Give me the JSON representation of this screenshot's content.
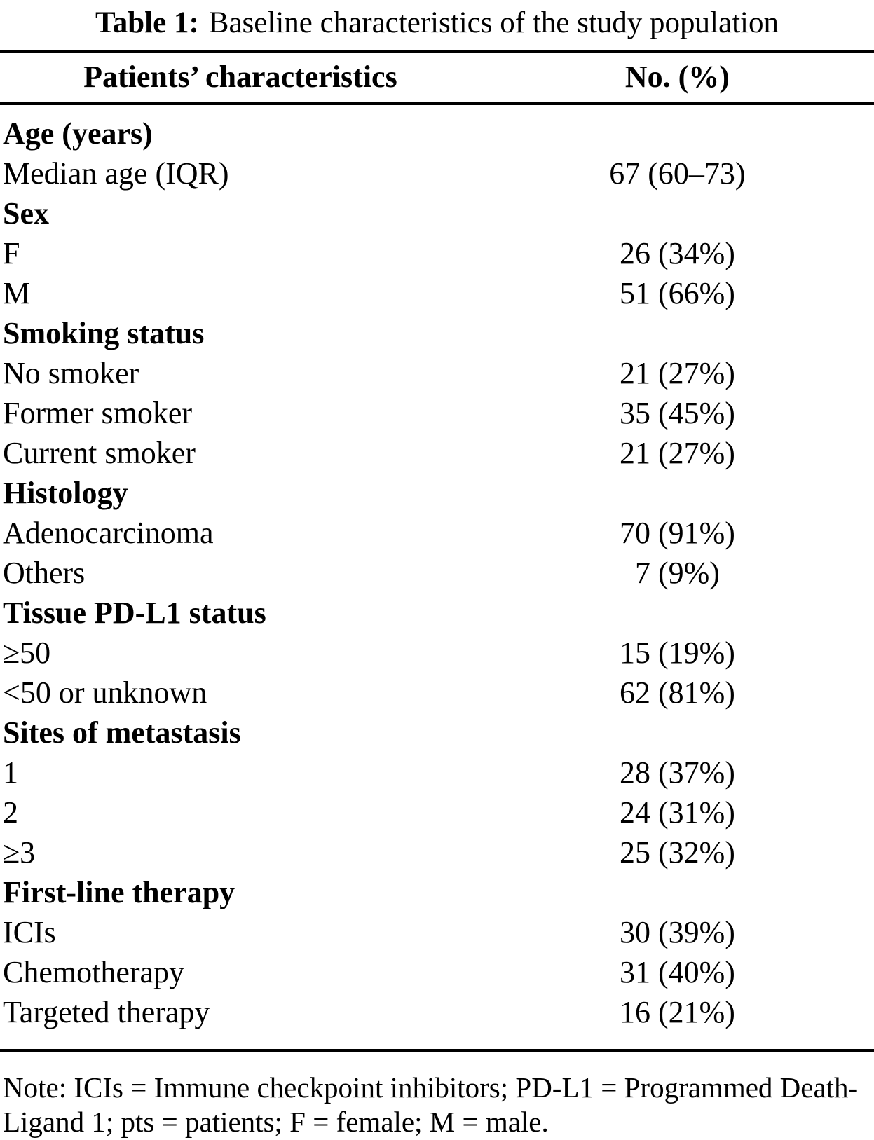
{
  "title": {
    "label": "Table 1:",
    "text": "Baseline characteristics of the study population"
  },
  "table": {
    "columns": [
      "Patients’ characteristics",
      "No. (%)"
    ],
    "rows": [
      {
        "type": "section",
        "label": "Age (years)",
        "value": ""
      },
      {
        "type": "data",
        "label": "Median age (IQR)",
        "value": "67 (60–73)"
      },
      {
        "type": "section",
        "label": "Sex",
        "value": ""
      },
      {
        "type": "data",
        "label": "F",
        "value": "26 (34%)"
      },
      {
        "type": "data",
        "label": "M",
        "value": "51 (66%)"
      },
      {
        "type": "section",
        "label": "Smoking status",
        "value": ""
      },
      {
        "type": "data",
        "label": "No smoker",
        "value": "21 (27%)"
      },
      {
        "type": "data",
        "label": "Former smoker",
        "value": "35 (45%)"
      },
      {
        "type": "data",
        "label": "Current smoker",
        "value": "21 (27%)"
      },
      {
        "type": "section",
        "label": "Histology",
        "value": ""
      },
      {
        "type": "data",
        "label": "Adenocarcinoma",
        "value": "70 (91%)"
      },
      {
        "type": "data",
        "label": "Others",
        "value": "7 (9%)"
      },
      {
        "type": "section",
        "label": "Tissue PD-L1 status",
        "value": ""
      },
      {
        "type": "data",
        "label": "≥50",
        "value": "15 (19%)"
      },
      {
        "type": "data",
        "label": "<50 or unknown",
        "value": "62 (81%)"
      },
      {
        "type": "section",
        "label": "Sites of metastasis",
        "value": ""
      },
      {
        "type": "data",
        "label": "1",
        "value": "28 (37%)"
      },
      {
        "type": "data",
        "label": "2",
        "value": "24 (31%)"
      },
      {
        "type": "data",
        "label": "≥3",
        "value": "25 (32%)"
      },
      {
        "type": "section",
        "label": "First-line therapy",
        "value": ""
      },
      {
        "type": "data",
        "label": "ICIs",
        "value": "30 (39%)"
      },
      {
        "type": "data",
        "label": "Chemotherapy",
        "value": "31 (40%)"
      },
      {
        "type": "data",
        "label": "Targeted therapy",
        "value": "16 (21%)"
      }
    ],
    "note": "Note: ICIs = Immune checkpoint inhibitors; PD-L1 = Programmed Death-Ligand 1; pts = patients; F = female; M = male."
  }
}
